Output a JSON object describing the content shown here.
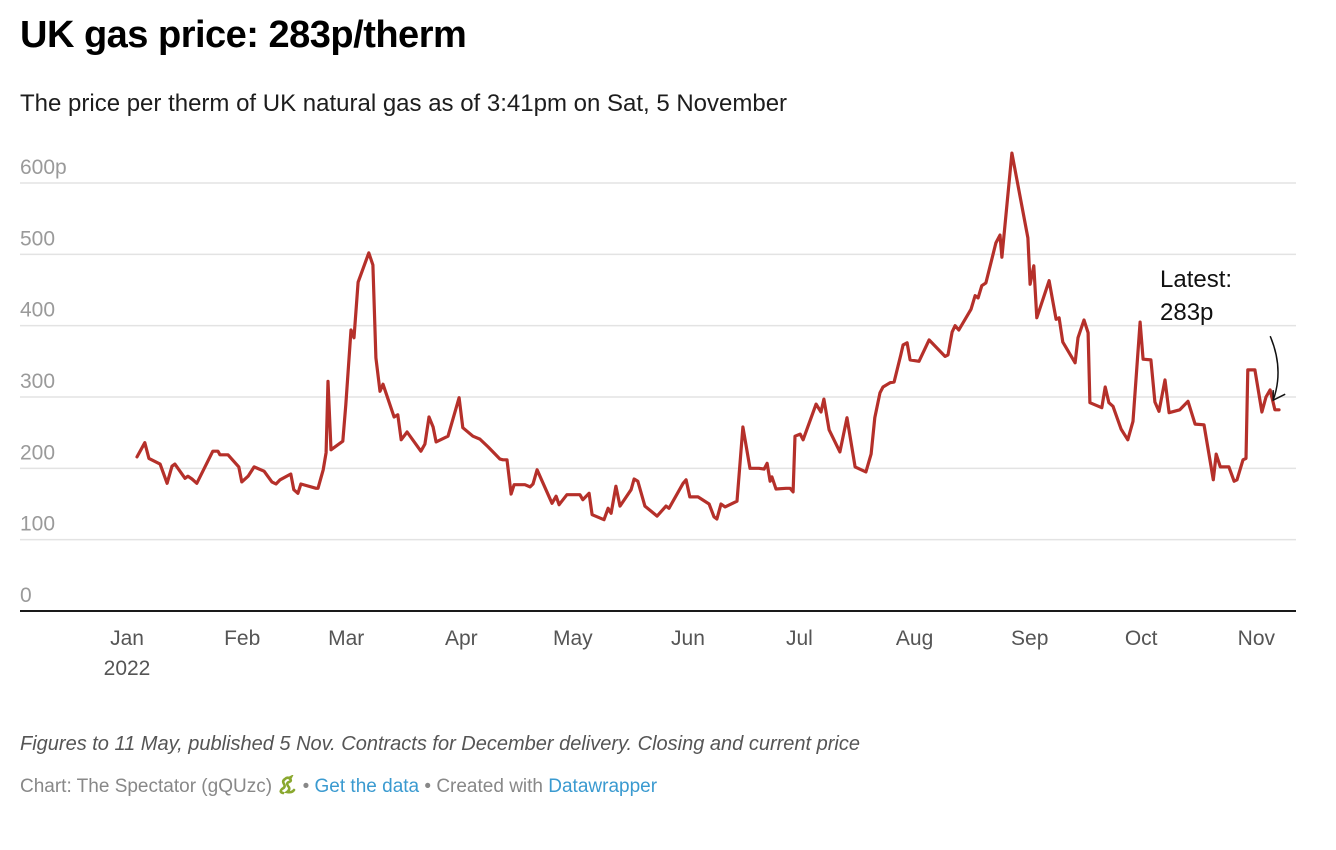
{
  "header": {
    "title": "UK gas price: 283p/therm",
    "subtitle": "The price per therm of UK natural gas as of 3:41pm on Sat, 5 November"
  },
  "chart_data": {
    "type": "line",
    "title": "UK gas price: 283p/therm",
    "xlabel": "",
    "ylabel": "",
    "x_unit": "day of 2022 (0 = 1 Jan)",
    "ylim": [
      0,
      600
    ],
    "yticks": [
      {
        "value": 0,
        "label": "0"
      },
      {
        "value": 100,
        "label": "100"
      },
      {
        "value": 200,
        "label": "200"
      },
      {
        "value": 300,
        "label": "300"
      },
      {
        "value": 400,
        "label": "400"
      },
      {
        "value": 500,
        "label": "500"
      },
      {
        "value": 600,
        "label": "600p"
      }
    ],
    "xticks": [
      {
        "day": 0,
        "label": "Jan",
        "sublabel": "2022"
      },
      {
        "day": 31,
        "label": "Feb"
      },
      {
        "day": 59,
        "label": "Mar"
      },
      {
        "day": 90,
        "label": "Apr"
      },
      {
        "day": 120,
        "label": "May"
      },
      {
        "day": 151,
        "label": "Jun"
      },
      {
        "day": 181,
        "label": "Jul"
      },
      {
        "day": 212,
        "label": "Aug"
      },
      {
        "day": 243,
        "label": "Sep"
      },
      {
        "day": 273,
        "label": "Oct"
      },
      {
        "day": 304,
        "label": "Nov"
      }
    ],
    "grid": true,
    "series": [
      {
        "name": "Gas price (p/therm)",
        "color": "#b5302a",
        "points": [
          [
            2.7,
            216
          ],
          [
            4.8,
            236
          ],
          [
            5.9,
            214
          ],
          [
            8.9,
            206
          ],
          [
            10.8,
            179
          ],
          [
            12.1,
            203
          ],
          [
            12.9,
            206
          ],
          [
            15.6,
            186
          ],
          [
            16.4,
            189
          ],
          [
            17.5,
            185
          ],
          [
            18.8,
            179
          ],
          [
            23.1,
            224
          ],
          [
            24.5,
            224
          ],
          [
            25.0,
            219
          ],
          [
            27.2,
            219
          ],
          [
            30.1,
            202
          ],
          [
            30.9,
            181
          ],
          [
            32.6,
            189
          ],
          [
            34.2,
            202
          ],
          [
            36.9,
            196
          ],
          [
            39.0,
            181
          ],
          [
            40.1,
            178
          ],
          [
            41.2,
            184
          ],
          [
            44.1,
            192
          ],
          [
            44.9,
            170
          ],
          [
            46.0,
            165
          ],
          [
            46.8,
            178
          ],
          [
            50.9,
            172
          ],
          [
            51.4,
            172
          ],
          [
            52.8,
            198
          ],
          [
            53.6,
            222
          ],
          [
            54.1,
            322
          ],
          [
            54.9,
            226
          ],
          [
            58.1,
            238
          ],
          [
            58.9,
            289
          ],
          [
            60.3,
            394
          ],
          [
            61.1,
            383
          ],
          [
            62.2,
            461
          ],
          [
            65.1,
            502
          ],
          [
            66.2,
            485
          ],
          [
            67.0,
            355
          ],
          [
            68.1,
            308
          ],
          [
            68.9,
            318
          ],
          [
            71.9,
            272
          ],
          [
            72.9,
            275
          ],
          [
            73.8,
            240
          ],
          [
            75.4,
            251
          ],
          [
            79.1,
            224
          ],
          [
            80.2,
            234
          ],
          [
            81.3,
            272
          ],
          [
            82.4,
            258
          ],
          [
            83.2,
            237
          ],
          [
            86.4,
            245
          ],
          [
            89.4,
            299
          ],
          [
            90.4,
            257
          ],
          [
            93.1,
            245
          ],
          [
            95.0,
            241
          ],
          [
            97.2,
            230
          ],
          [
            100.4,
            213
          ],
          [
            101.2,
            212
          ],
          [
            102.3,
            212
          ],
          [
            103.4,
            164
          ],
          [
            104.2,
            177
          ],
          [
            107.1,
            177
          ],
          [
            108.5,
            174
          ],
          [
            109.3,
            178
          ],
          [
            110.4,
            198
          ],
          [
            114.4,
            151
          ],
          [
            115.5,
            161
          ],
          [
            116.3,
            149
          ],
          [
            118.4,
            163
          ],
          [
            121.9,
            163
          ],
          [
            122.7,
            156
          ],
          [
            124.4,
            165
          ],
          [
            125.2,
            135
          ],
          [
            128.4,
            128
          ],
          [
            129.5,
            144
          ],
          [
            130.3,
            137
          ],
          [
            131.6,
            175
          ],
          [
            132.7,
            147
          ],
          [
            135.7,
            170
          ],
          [
            136.5,
            185
          ],
          [
            137.5,
            182
          ],
          [
            139.4,
            147
          ],
          [
            142.7,
            133
          ],
          [
            145.1,
            147
          ],
          [
            145.9,
            144
          ],
          [
            149.7,
            179
          ],
          [
            150.5,
            184
          ],
          [
            151.5,
            160
          ],
          [
            153.7,
            160
          ],
          [
            156.7,
            150
          ],
          [
            158.0,
            132
          ],
          [
            158.8,
            129
          ],
          [
            159.9,
            150
          ],
          [
            161.0,
            146
          ],
          [
            164.2,
            154
          ],
          [
            165.8,
            258
          ],
          [
            167.7,
            200
          ],
          [
            170.1,
            200
          ],
          [
            171.5,
            199
          ],
          [
            172.3,
            207
          ],
          [
            173.1,
            182
          ],
          [
            173.6,
            188
          ],
          [
            174.7,
            171
          ],
          [
            177.4,
            172
          ],
          [
            178.5,
            172
          ],
          [
            179.3,
            167
          ],
          [
            179.8,
            245
          ],
          [
            181.2,
            248
          ],
          [
            182.0,
            240
          ],
          [
            185.5,
            290
          ],
          [
            186.8,
            279
          ],
          [
            187.6,
            297
          ],
          [
            189.0,
            254
          ],
          [
            191.9,
            223
          ],
          [
            193.8,
            271
          ],
          [
            196.0,
            202
          ],
          [
            198.9,
            195
          ],
          [
            200.3,
            220
          ],
          [
            201.3,
            271
          ],
          [
            202.7,
            306
          ],
          [
            203.5,
            314
          ],
          [
            205.4,
            320
          ],
          [
            206.5,
            321
          ],
          [
            208.3,
            359
          ],
          [
            208.9,
            373
          ],
          [
            210.0,
            376
          ],
          [
            210.8,
            352
          ],
          [
            213.2,
            350
          ],
          [
            215.9,
            380
          ],
          [
            220.2,
            357
          ],
          [
            221.0,
            359
          ],
          [
            222.1,
            391
          ],
          [
            222.9,
            400
          ],
          [
            223.9,
            394
          ],
          [
            227.2,
            423
          ],
          [
            228.3,
            442
          ],
          [
            229.1,
            439
          ],
          [
            230.1,
            456
          ],
          [
            231.2,
            460
          ],
          [
            233.9,
            516
          ],
          [
            235.0,
            527
          ],
          [
            235.5,
            496
          ],
          [
            238.2,
            642
          ],
          [
            242.5,
            523
          ],
          [
            243.1,
            458
          ],
          [
            244.1,
            484
          ],
          [
            244.9,
            411
          ],
          [
            248.2,
            463
          ],
          [
            249.3,
            432
          ],
          [
            250.1,
            409
          ],
          [
            250.9,
            411
          ],
          [
            251.9,
            377
          ],
          [
            255.2,
            348
          ],
          [
            256.0,
            383
          ],
          [
            257.6,
            408
          ],
          [
            258.7,
            390
          ],
          [
            259.2,
            292
          ],
          [
            262.4,
            285
          ],
          [
            263.3,
            314
          ],
          [
            264.3,
            292
          ],
          [
            265.4,
            287
          ],
          [
            267.6,
            255
          ],
          [
            269.4,
            240
          ],
          [
            270.8,
            266
          ],
          [
            272.7,
            405
          ],
          [
            273.5,
            353
          ],
          [
            275.6,
            352
          ],
          [
            276.7,
            293
          ],
          [
            277.8,
            280
          ],
          [
            279.4,
            324
          ],
          [
            280.5,
            278
          ],
          [
            283.4,
            282
          ],
          [
            284.3,
            287
          ],
          [
            285.6,
            294
          ],
          [
            287.5,
            262
          ],
          [
            289.9,
            261
          ],
          [
            292.4,
            184
          ],
          [
            293.2,
            220
          ],
          [
            294.3,
            202
          ],
          [
            296.6,
            202
          ],
          [
            298.0,
            182
          ],
          [
            298.8,
            184
          ],
          [
            300.4,
            212
          ],
          [
            301.2,
            214
          ],
          [
            301.7,
            338
          ],
          [
            303.6,
            338
          ],
          [
            305.5,
            279
          ],
          [
            306.6,
            300
          ],
          [
            307.7,
            310
          ],
          [
            309.0,
            282
          ],
          [
            310.1,
            282
          ]
        ]
      }
    ],
    "annotations": [
      {
        "text_line1": "Latest:",
        "text_line2": "283p",
        "target_day": 308.8,
        "target_value": 297
      }
    ]
  },
  "footer": {
    "notes": "Figures to 11 May, published 5 Nov. Contracts for December delivery. Closing and current price",
    "byline_prefix": "Chart: The Spectator (gQUzc)",
    "separator1": " • ",
    "get_data_link": "Get the data",
    "separator2": " • Created with ",
    "datawrapper_link": "Datawrapper",
    "snake_icon": "snake-emoji"
  },
  "colors": {
    "line": "#b5302a",
    "grid": "#e3e3e3",
    "axis": "#1a1a1a",
    "tick_label": "#9a9a9a",
    "month_label": "#555555",
    "link": "#3a9ad0"
  }
}
